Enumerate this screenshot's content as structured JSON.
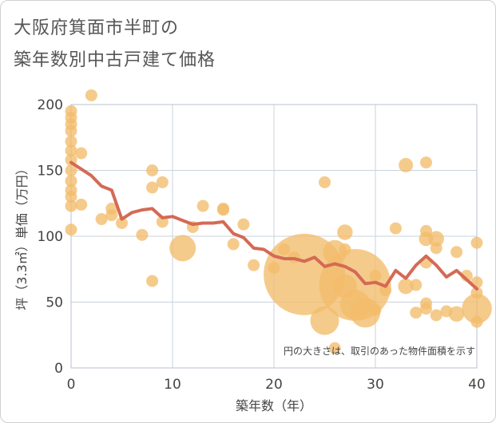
{
  "chart_data": {
    "type": "scatter",
    "title": "大阪府箕面市半町の\n築年数別中古戸建て価格",
    "title_lines": [
      "大阪府箕面市半町の",
      "築年数別中古戸建て価格"
    ],
    "xlabel": "築年数（年）",
    "ylabel": "坪（3.3㎡）単価（万円）",
    "xlim": [
      0,
      40
    ],
    "ylim": [
      0,
      200
    ],
    "xticks": [
      0,
      10,
      20,
      30,
      40
    ],
    "yticks": [
      0,
      50,
      100,
      150,
      200
    ],
    "grid": true,
    "note": "円の大きさは、取引のあった物件面積を示す",
    "colors": {
      "bubble": "#f2bd6b",
      "line": "#d46a55",
      "grid": "#c9d3de",
      "plot_border": "#b8c2cc"
    },
    "bubbles": [
      {
        "x": 0,
        "y": 195,
        "s": 1
      },
      {
        "x": 0,
        "y": 190,
        "s": 1
      },
      {
        "x": 0,
        "y": 185,
        "s": 1
      },
      {
        "x": 0,
        "y": 180,
        "s": 1
      },
      {
        "x": 0,
        "y": 172,
        "s": 1
      },
      {
        "x": 0,
        "y": 165,
        "s": 1
      },
      {
        "x": 0,
        "y": 158,
        "s": 1
      },
      {
        "x": 0,
        "y": 150,
        "s": 1
      },
      {
        "x": 0,
        "y": 142,
        "s": 1
      },
      {
        "x": 0,
        "y": 135,
        "s": 1
      },
      {
        "x": 0,
        "y": 130,
        "s": 1
      },
      {
        "x": 0,
        "y": 123,
        "s": 1
      },
      {
        "x": 0,
        "y": 105,
        "s": 1
      },
      {
        "x": 1,
        "y": 163,
        "s": 1
      },
      {
        "x": 1,
        "y": 124,
        "s": 1
      },
      {
        "x": 2,
        "y": 207,
        "s": 1
      },
      {
        "x": 3,
        "y": 113,
        "s": 1
      },
      {
        "x": 4,
        "y": 121,
        "s": 1
      },
      {
        "x": 4,
        "y": 116,
        "s": 1
      },
      {
        "x": 5,
        "y": 110,
        "s": 1
      },
      {
        "x": 7,
        "y": 101,
        "s": 1
      },
      {
        "x": 8,
        "y": 150,
        "s": 1
      },
      {
        "x": 8,
        "y": 137,
        "s": 1
      },
      {
        "x": 8,
        "y": 66,
        "s": 1
      },
      {
        "x": 9,
        "y": 141,
        "s": 1
      },
      {
        "x": 9,
        "y": 111,
        "s": 1
      },
      {
        "x": 11,
        "y": 91,
        "s": 2.2
      },
      {
        "x": 12,
        "y": 107,
        "s": 1
      },
      {
        "x": 13,
        "y": 123,
        "s": 1
      },
      {
        "x": 15,
        "y": 121,
        "s": 1
      },
      {
        "x": 15,
        "y": 120,
        "s": 1
      },
      {
        "x": 16,
        "y": 94,
        "s": 1
      },
      {
        "x": 17,
        "y": 109,
        "s": 1
      },
      {
        "x": 18,
        "y": 78,
        "s": 1
      },
      {
        "x": 20,
        "y": 76,
        "s": 1
      },
      {
        "x": 21,
        "y": 90,
        "s": 1
      },
      {
        "x": 22,
        "y": 84,
        "s": 1
      },
      {
        "x": 23,
        "y": 71,
        "s": 6.8
      },
      {
        "x": 25,
        "y": 141,
        "s": 1
      },
      {
        "x": 25,
        "y": 36,
        "s": 2.4
      },
      {
        "x": 26,
        "y": 88,
        "s": 2
      },
      {
        "x": 26,
        "y": 15,
        "s": 1
      },
      {
        "x": 27,
        "y": 103,
        "s": 1.3
      },
      {
        "x": 27,
        "y": 90,
        "s": 1
      },
      {
        "x": 27,
        "y": 62,
        "s": 2
      },
      {
        "x": 28,
        "y": 63,
        "s": 6
      },
      {
        "x": 28,
        "y": 48,
        "s": 2.5
      },
      {
        "x": 29,
        "y": 42,
        "s": 2.5
      },
      {
        "x": 30,
        "y": 70,
        "s": 1
      },
      {
        "x": 30,
        "y": 44,
        "s": 1
      },
      {
        "x": 31,
        "y": 59,
        "s": 1
      },
      {
        "x": 32,
        "y": 106,
        "s": 1
      },
      {
        "x": 33,
        "y": 154,
        "s": 1.2
      },
      {
        "x": 33,
        "y": 62,
        "s": 1.3
      },
      {
        "x": 34,
        "y": 63,
        "s": 1
      },
      {
        "x": 34,
        "y": 42,
        "s": 1
      },
      {
        "x": 35,
        "y": 156,
        "s": 1
      },
      {
        "x": 35,
        "y": 104,
        "s": 1
      },
      {
        "x": 35,
        "y": 98,
        "s": 1.2
      },
      {
        "x": 35,
        "y": 80,
        "s": 1
      },
      {
        "x": 35,
        "y": 49,
        "s": 1
      },
      {
        "x": 35,
        "y": 45,
        "s": 1
      },
      {
        "x": 36,
        "y": 98,
        "s": 1.3
      },
      {
        "x": 36,
        "y": 91,
        "s": 1
      },
      {
        "x": 36,
        "y": 40,
        "s": 1
      },
      {
        "x": 37,
        "y": 43,
        "s": 1
      },
      {
        "x": 38,
        "y": 88,
        "s": 1
      },
      {
        "x": 38,
        "y": 41,
        "s": 1.3
      },
      {
        "x": 39,
        "y": 70,
        "s": 1
      },
      {
        "x": 40,
        "y": 95,
        "s": 1
      },
      {
        "x": 40,
        "y": 65,
        "s": 1
      },
      {
        "x": 40,
        "y": 57,
        "s": 1
      },
      {
        "x": 40,
        "y": 45,
        "s": 2.5
      },
      {
        "x": 40,
        "y": 35,
        "s": 1
      }
    ],
    "trend": {
      "x": [
        0,
        1,
        2,
        3,
        4,
        5,
        6,
        7,
        8,
        9,
        10,
        11,
        12,
        13,
        14,
        15,
        16,
        17,
        18,
        19,
        20,
        21,
        22,
        23,
        24,
        25,
        26,
        27,
        28,
        29,
        30,
        31,
        32,
        33,
        34,
        35,
        36,
        37,
        38,
        39,
        40
      ],
      "y": [
        156,
        151,
        146,
        138,
        135,
        113,
        118,
        120,
        121,
        114,
        115,
        112,
        109,
        110,
        110,
        111,
        102,
        99,
        91,
        90,
        85,
        83,
        83,
        81,
        84,
        77,
        79,
        77,
        73,
        64,
        65,
        62,
        74,
        68,
        78,
        85,
        78,
        69,
        74,
        67,
        60
      ]
    }
  }
}
